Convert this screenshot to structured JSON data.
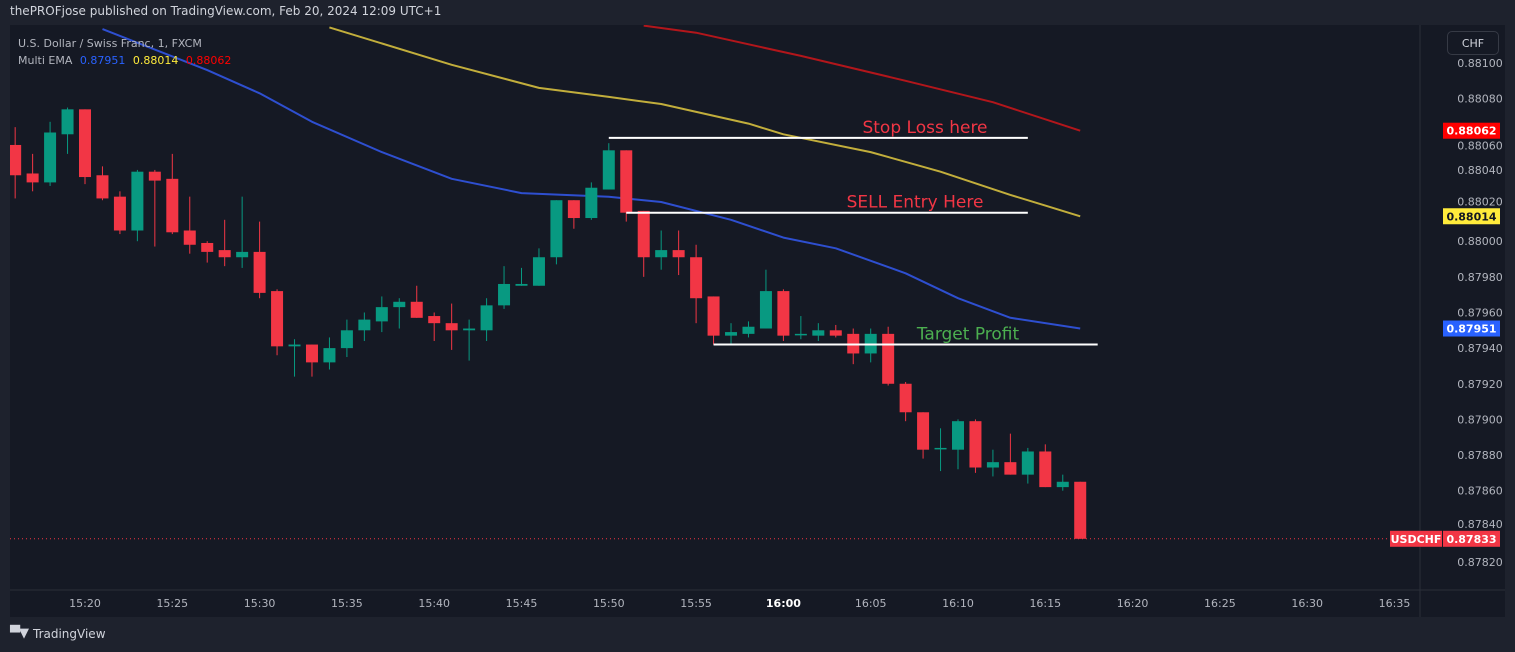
{
  "header": {
    "published": "thePROFjose published on TradingView.com, Feb 20, 2024 12:09 UTC+1"
  },
  "legend": {
    "symbol": "U.S. Dollar / Swiss Franc, 1, FXCM",
    "indicator": "Multi EMA",
    "values": [
      "0.87951",
      "0.88014",
      "0.88062"
    ]
  },
  "currency_button": "CHF",
  "footer": {
    "brand": "TradingView",
    "logo_text": "TV"
  },
  "colors": {
    "up": "#089981",
    "down": "#f23645",
    "ema_fast": "#2e4fd0",
    "ema_mid": "#c2ae3c",
    "ema_slow": "#b2161b",
    "annotation_line": "#ffffff",
    "sell_text": "#f23645",
    "target_text": "#4caf50"
  },
  "chart_data": {
    "type": "candlestick",
    "symbol": "USDCHF",
    "price_ticks": [
      "0.88100",
      "0.88080",
      "0.88060",
      "0.88040",
      "0.88020",
      "0.88000",
      "0.87980",
      "0.87960",
      "0.87940",
      "0.87920",
      "0.87900",
      "0.87880",
      "0.87860",
      "0.87840",
      "0.87820"
    ],
    "time_ticks": [
      "15:20",
      "15:25",
      "15:30",
      "15:35",
      "15:40",
      "15:45",
      "15:50",
      "15:55",
      "16:00",
      "16:05",
      "16:10",
      "16:15",
      "16:20",
      "16:25",
      "16:30",
      "16:35"
    ],
    "ylim": [
      0.8781,
      0.88105
    ],
    "columns": [
      "time",
      "open",
      "high",
      "low",
      "close"
    ],
    "candles": [
      [
        "15:16",
        0.88054,
        0.88064,
        0.88024,
        0.88037
      ],
      [
        "15:17",
        0.88038,
        0.88049,
        0.88028,
        0.88033
      ],
      [
        "15:18",
        0.88033,
        0.88067,
        0.88031,
        0.88061
      ],
      [
        "15:19",
        0.8806,
        0.88075,
        0.88049,
        0.88074
      ],
      [
        "15:20",
        0.88074,
        0.88074,
        0.88032,
        0.88036
      ],
      [
        "15:21",
        0.88037,
        0.88042,
        0.88023,
        0.88024
      ],
      [
        "15:22",
        0.88025,
        0.88028,
        0.88004,
        0.88006
      ],
      [
        "15:23",
        0.88006,
        0.8804,
        0.88,
        0.88039
      ],
      [
        "15:24",
        0.88039,
        0.8804,
        0.87997,
        0.88034
      ],
      [
        "15:25",
        0.88035,
        0.88049,
        0.88004,
        0.88005
      ],
      [
        "15:26",
        0.88006,
        0.88025,
        0.87993,
        0.87998
      ],
      [
        "15:27",
        0.87999,
        0.88,
        0.87988,
        0.87994
      ],
      [
        "15:28",
        0.87995,
        0.88012,
        0.87986,
        0.87991
      ],
      [
        "15:29",
        0.87991,
        0.88025,
        0.87985,
        0.87994
      ],
      [
        "15:30",
        0.87994,
        0.88011,
        0.87968,
        0.87971
      ],
      [
        "15:31",
        0.87972,
        0.87973,
        0.87936,
        0.87941
      ],
      [
        "15:32",
        0.87941,
        0.87945,
        0.87924,
        0.87942
      ],
      [
        "15:33",
        0.87942,
        0.87942,
        0.87924,
        0.87932
      ],
      [
        "15:34",
        0.87932,
        0.87946,
        0.87928,
        0.8794
      ],
      [
        "15:35",
        0.8794,
        0.87956,
        0.87935,
        0.8795
      ],
      [
        "15:36",
        0.8795,
        0.8796,
        0.87944,
        0.87956
      ],
      [
        "15:37",
        0.87955,
        0.87969,
        0.87949,
        0.87963
      ],
      [
        "15:38",
        0.87963,
        0.87968,
        0.87951,
        0.87966
      ],
      [
        "15:39",
        0.87966,
        0.87975,
        0.87957,
        0.87957
      ],
      [
        "15:40",
        0.87958,
        0.8796,
        0.87944,
        0.87954
      ],
      [
        "15:41",
        0.87954,
        0.87965,
        0.87939,
        0.8795
      ],
      [
        "15:42",
        0.8795,
        0.87956,
        0.87933,
        0.87951
      ],
      [
        "15:43",
        0.8795,
        0.87968,
        0.87944,
        0.87964
      ],
      [
        "15:44",
        0.87964,
        0.87986,
        0.87962,
        0.87976
      ],
      [
        "15:45",
        0.87975,
        0.87985,
        0.87975,
        0.87976
      ],
      [
        "15:46",
        0.87975,
        0.87996,
        0.87975,
        0.87991
      ],
      [
        "15:47",
        0.87991,
        0.88023,
        0.87987,
        0.88023
      ],
      [
        "15:48",
        0.88023,
        0.88023,
        0.88007,
        0.88013
      ],
      [
        "15:49",
        0.88013,
        0.88033,
        0.88012,
        0.8803
      ],
      [
        "15:50",
        0.88029,
        0.88055,
        0.88029,
        0.88051
      ],
      [
        "15:51",
        0.88051,
        0.88051,
        0.88011,
        0.88016
      ],
      [
        "15:52",
        0.88017,
        0.88017,
        0.8798,
        0.87991
      ],
      [
        "15:53",
        0.87991,
        0.88006,
        0.87984,
        0.87995
      ],
      [
        "15:54",
        0.87995,
        0.88006,
        0.87981,
        0.87991
      ],
      [
        "15:55",
        0.87991,
        0.87998,
        0.87954,
        0.87968
      ],
      [
        "15:56",
        0.87969,
        0.87969,
        0.87942,
        0.87947
      ],
      [
        "15:57",
        0.87947,
        0.87954,
        0.87942,
        0.87949
      ],
      [
        "15:58",
        0.87948,
        0.87955,
        0.87946,
        0.87952
      ],
      [
        "15:59",
        0.87951,
        0.87984,
        0.87951,
        0.87972
      ],
      [
        "16:00",
        0.87972,
        0.87973,
        0.87944,
        0.87947
      ],
      [
        "16:01",
        0.87948,
        0.87958,
        0.87945,
        0.87948
      ],
      [
        "16:02",
        0.87947,
        0.87954,
        0.87944,
        0.8795
      ],
      [
        "16:03",
        0.8795,
        0.87953,
        0.87946,
        0.87947
      ],
      [
        "16:04",
        0.87948,
        0.87951,
        0.87931,
        0.87937
      ],
      [
        "16:05",
        0.87937,
        0.87951,
        0.87932,
        0.87948
      ],
      [
        "16:06",
        0.87948,
        0.87952,
        0.87919,
        0.8792
      ],
      [
        "16:07",
        0.8792,
        0.87921,
        0.87899,
        0.87904
      ],
      [
        "16:08",
        0.87904,
        0.87904,
        0.87878,
        0.87883
      ],
      [
        "16:09",
        0.87884,
        0.87895,
        0.87871,
        0.87884
      ],
      [
        "16:10",
        0.87883,
        0.879,
        0.87872,
        0.87899
      ],
      [
        "16:11",
        0.87899,
        0.879,
        0.8787,
        0.87873
      ],
      [
        "16:12",
        0.87873,
        0.87883,
        0.87868,
        0.87876
      ],
      [
        "16:13",
        0.87876,
        0.87892,
        0.87869,
        0.87869
      ],
      [
        "16:14",
        0.87869,
        0.87884,
        0.87864,
        0.87882
      ],
      [
        "16:15",
        0.87882,
        0.87886,
        0.87862,
        0.87862
      ],
      [
        "16:16",
        0.87862,
        0.87869,
        0.8786,
        0.87865
      ],
      [
        "16:17",
        0.87865,
        0.87865,
        0.87833,
        0.87833
      ]
    ],
    "ema_series": [
      {
        "value_label": "0.87951",
        "color_key": "ema_fast",
        "points": [
          [
            "15:21",
            0.88119
          ],
          [
            "15:27",
            0.88096
          ],
          [
            "15:30",
            0.88083
          ],
          [
            "15:33",
            0.88067
          ],
          [
            "15:37",
            0.8805
          ],
          [
            "15:41",
            0.88035
          ],
          [
            "15:45",
            0.88027
          ],
          [
            "15:50",
            0.88025
          ],
          [
            "15:53",
            0.88022
          ],
          [
            "15:57",
            0.88012
          ],
          [
            "16:00",
            0.88002
          ],
          [
            "16:03",
            0.87996
          ],
          [
            "16:07",
            0.87982
          ],
          [
            "16:10",
            0.87968
          ],
          [
            "16:13",
            0.87957
          ],
          [
            "16:17",
            0.87951
          ]
        ]
      },
      {
        "value_label": "0.88014",
        "color_key": "ema_mid",
        "points": [
          [
            "15:34",
            0.8812
          ],
          [
            "15:41",
            0.88099
          ],
          [
            "15:46",
            0.88086
          ],
          [
            "15:50",
            0.88081
          ],
          [
            "15:53",
            0.88077
          ],
          [
            "15:58",
            0.88066
          ],
          [
            "16:00",
            0.8806
          ],
          [
            "16:05",
            0.8805
          ],
          [
            "16:09",
            0.88039
          ],
          [
            "16:13",
            0.88026
          ],
          [
            "16:15",
            0.8802
          ],
          [
            "16:17",
            0.88014
          ]
        ]
      },
      {
        "value_label": "0.88062",
        "color_key": "ema_slow",
        "points": [
          [
            "15:52",
            0.88121
          ],
          [
            "15:55",
            0.88117
          ],
          [
            "16:01",
            0.88104
          ],
          [
            "16:07",
            0.8809
          ],
          [
            "16:12",
            0.88078
          ],
          [
            "16:17",
            0.88062
          ]
        ]
      }
    ],
    "last_price": {
      "symbol": "USDCHF",
      "value": "0.87833"
    },
    "annotations": [
      {
        "text": "Stop Loss here",
        "price": 0.88058,
        "from": "15:50",
        "to": "16:14",
        "color_key": "sell_text"
      },
      {
        "text": "SELL Entry Here",
        "price": 0.88016,
        "from": "15:51",
        "to": "16:14",
        "color_key": "sell_text"
      },
      {
        "text": "Target Profit",
        "price": 0.87942,
        "from": "15:56",
        "to": "16:18",
        "color_key": "target_text"
      }
    ]
  }
}
